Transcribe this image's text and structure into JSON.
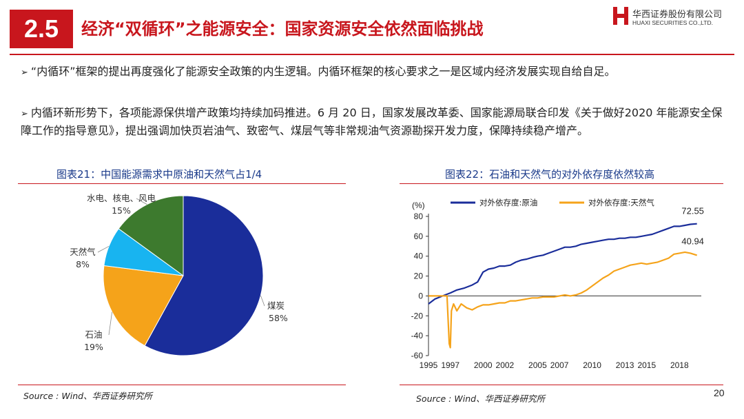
{
  "header": {
    "section_number": "2.5",
    "title": "经济“双循环”之能源安全：国家资源安全依然面临挑战",
    "logo_cn": "华西证券股份有限公司",
    "logo_en": "HUAXI SECURITIES CO.,LTD.",
    "brand_color": "#c8161d"
  },
  "bullets": [
    {
      "mark": "➢",
      "text": "“内循环”框架的提出再度强化了能源安全政策的内生逻辑。内循环框架的核心要求之一是区域内经济发展实现自给自足。"
    },
    {
      "mark": "➢",
      "text": "内循环新形势下，各项能源保供增产政策均持续加码推进。6 月 20 日，国家发展改革委、国家能源局联合印发《关于做好2020 年能源安全保障工作的指导意见》，提出强调加快页岩油气、致密气、煤层气等非常规油气资源勘探开发力度，保障持续稳产增产。"
    }
  ],
  "figures": {
    "fig1_title": "图表21：中国能源需求中原油和天然气占1/4",
    "fig2_title": "图表22：石油和天然气的对外依存度依然较高"
  },
  "footer": {
    "source_left": "Source : Wind、华西证券研究所",
    "source_right": "Source : Wind、华西证券研究所",
    "page_number": "20"
  },
  "chart_data": [
    {
      "type": "pie",
      "slices": [
        {
          "name": "煤炭",
          "value": 58,
          "label": "58%",
          "color": "#1a2d9a"
        },
        {
          "name": "石油",
          "value": 19,
          "label": "19%",
          "color": "#f5a31a"
        },
        {
          "name": "天然气",
          "value": 8,
          "label": "8%",
          "color": "#18b4f0"
        },
        {
          "name": "水电、核电、风电",
          "value": 15,
          "label": "15%",
          "color": "#3d7a2e"
        }
      ]
    },
    {
      "type": "line",
      "ylabel": "(%)",
      "ylim": [
        -60,
        80
      ],
      "yticks": [
        80,
        60,
        40,
        20,
        0,
        -20,
        -40,
        -60
      ],
      "xticks": [
        "1995",
        "1997",
        "2000",
        "2002",
        "2005",
        "2007",
        "2010",
        "2013",
        "2015",
        "2018"
      ],
      "xrange": [
        1995,
        2020
      ],
      "legend_position": "top",
      "series": [
        {
          "name": "对外依存度:原油",
          "color": "#1a2d9a",
          "end_label": "72.55",
          "points": [
            [
              1995,
              -8
            ],
            [
              1995.6,
              -3
            ],
            [
              1996.3,
              0
            ],
            [
              1997,
              3
            ],
            [
              1997.6,
              6
            ],
            [
              1998.3,
              8
            ],
            [
              1999,
              11
            ],
            [
              1999.5,
              14
            ],
            [
              2000,
              24
            ],
            [
              2000.5,
              27
            ],
            [
              2001,
              28
            ],
            [
              2001.5,
              30
            ],
            [
              2002,
              30
            ],
            [
              2002.5,
              31
            ],
            [
              2003,
              34
            ],
            [
              2003.5,
              36
            ],
            [
              2004,
              37
            ],
            [
              2004.6,
              39
            ],
            [
              2005,
              40
            ],
            [
              2005.5,
              41
            ],
            [
              2006,
              43
            ],
            [
              2006.5,
              45
            ],
            [
              2007,
              47
            ],
            [
              2007.5,
              49
            ],
            [
              2008,
              49
            ],
            [
              2008.5,
              50
            ],
            [
              2009,
              52
            ],
            [
              2009.5,
              53
            ],
            [
              2010,
              54
            ],
            [
              2010.5,
              55
            ],
            [
              2011,
              56
            ],
            [
              2011.5,
              57
            ],
            [
              2012,
              57
            ],
            [
              2012.5,
              58
            ],
            [
              2013,
              58
            ],
            [
              2013.5,
              59
            ],
            [
              2014,
              59
            ],
            [
              2014.5,
              60
            ],
            [
              2015,
              61
            ],
            [
              2015.5,
              62
            ],
            [
              2016,
              64
            ],
            [
              2016.5,
              66
            ],
            [
              2017,
              68
            ],
            [
              2017.5,
              70
            ],
            [
              2018,
              70
            ],
            [
              2018.5,
              71
            ],
            [
              2019,
              72
            ],
            [
              2019.6,
              72.55
            ]
          ]
        },
        {
          "name": "对外依存度:天然气",
          "color": "#f5a31a",
          "end_label": "40.94",
          "points": [
            [
              1995,
              0
            ],
            [
              1996,
              0
            ],
            [
              1996.7,
              0
            ],
            [
              1996.9,
              -48
            ],
            [
              1997.0,
              -52
            ],
            [
              1997.1,
              -15
            ],
            [
              1997.3,
              -8
            ],
            [
              1997.6,
              -15
            ],
            [
              1998,
              -8
            ],
            [
              1998.5,
              -12
            ],
            [
              1999,
              -14
            ],
            [
              1999.5,
              -11
            ],
            [
              2000,
              -9
            ],
            [
              2000.5,
              -9
            ],
            [
              2001,
              -8
            ],
            [
              2001.5,
              -7
            ],
            [
              2002,
              -7
            ],
            [
              2002.5,
              -5
            ],
            [
              2003,
              -5
            ],
            [
              2003.5,
              -4
            ],
            [
              2004,
              -3
            ],
            [
              2004.5,
              -2
            ],
            [
              2005,
              -2
            ],
            [
              2005.5,
              -1
            ],
            [
              2006,
              -1
            ],
            [
              2006.5,
              -1
            ],
            [
              2007,
              0
            ],
            [
              2007.5,
              1
            ],
            [
              2008,
              0
            ],
            [
              2008.5,
              1
            ],
            [
              2009,
              3
            ],
            [
              2009.5,
              6
            ],
            [
              2010,
              10
            ],
            [
              2010.5,
              14
            ],
            [
              2011,
              18
            ],
            [
              2011.5,
              21
            ],
            [
              2012,
              25
            ],
            [
              2012.5,
              27
            ],
            [
              2013,
              29
            ],
            [
              2013.5,
              31
            ],
            [
              2014,
              32
            ],
            [
              2014.5,
              33
            ],
            [
              2015,
              32
            ],
            [
              2015.5,
              33
            ],
            [
              2016,
              34
            ],
            [
              2016.5,
              36
            ],
            [
              2017,
              38
            ],
            [
              2017.5,
              42
            ],
            [
              2018,
              43
            ],
            [
              2018.5,
              44
            ],
            [
              2019,
              43
            ],
            [
              2019.6,
              40.94
            ]
          ]
        }
      ]
    }
  ]
}
